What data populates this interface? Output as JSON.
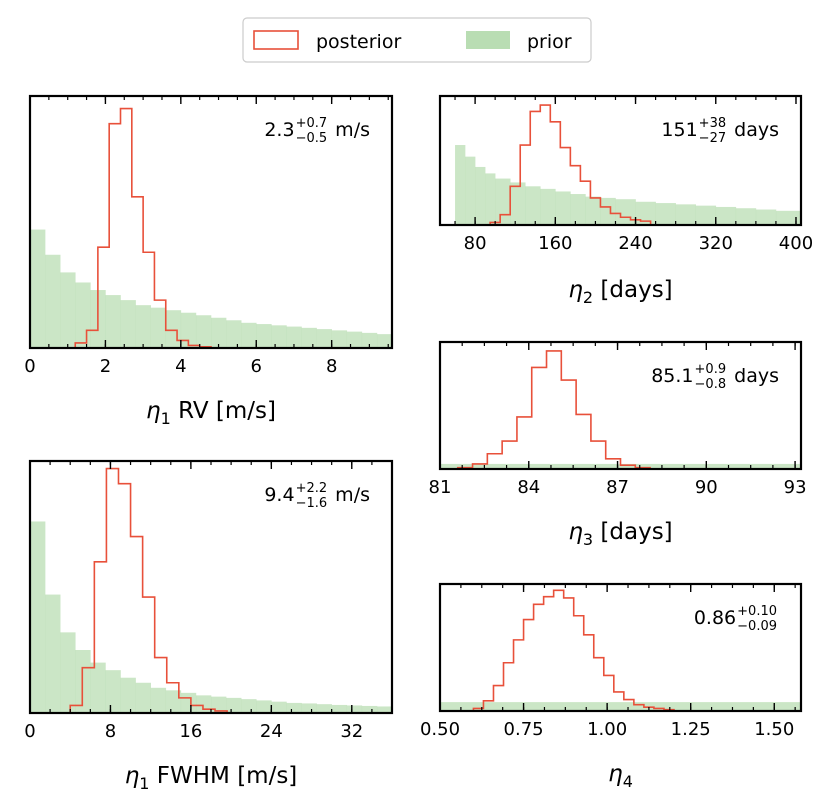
{
  "legend": {
    "posterior_label": "posterior",
    "prior_label": "prior",
    "posterior_color": "#e8503a",
    "prior_color": "#b9ddb3"
  },
  "chart_data": [
    {
      "id": "eta1-rv",
      "type": "histogram",
      "xlabel_symbol": "η",
      "xlabel_sub": "1",
      "xlabel_rest": " RV [m/s]",
      "annotation": {
        "value": "2.3",
        "sup": "+0.7",
        "sub": "−0.5",
        "unit": " m/s"
      },
      "xlim": [
        0,
        9.6
      ],
      "ymax": 1.0,
      "xticks": [
        0,
        2,
        4,
        6,
        8
      ],
      "xticklabels": [
        "0",
        "2",
        "4",
        "6",
        "8"
      ],
      "posterior_edges": [
        1.2,
        1.5,
        1.8,
        2.1,
        2.4,
        2.7,
        3.0,
        3.3,
        3.6,
        3.9,
        4.2,
        4.5,
        4.8
      ],
      "posterior": [
        0.02,
        0.07,
        0.4,
        0.89,
        0.95,
        0.6,
        0.38,
        0.19,
        0.07,
        0.03,
        0.01,
        0.005
      ],
      "prior_edges": [
        0,
        0.4,
        0.8,
        1.2,
        1.6,
        2.0,
        2.4,
        2.8,
        3.2,
        3.6,
        4.0,
        4.4,
        4.8,
        5.2,
        5.6,
        6.0,
        6.4,
        6.8,
        7.2,
        7.6,
        8.0,
        8.4,
        8.8,
        9.2,
        9.6
      ],
      "prior": [
        0.47,
        0.37,
        0.3,
        0.26,
        0.23,
        0.21,
        0.19,
        0.17,
        0.16,
        0.15,
        0.14,
        0.13,
        0.12,
        0.11,
        0.1,
        0.095,
        0.09,
        0.085,
        0.08,
        0.075,
        0.07,
        0.065,
        0.06,
        0.055
      ]
    },
    {
      "id": "eta1-fwhm",
      "type": "histogram",
      "xlabel_symbol": "η",
      "xlabel_sub": "1",
      "xlabel_rest": " FWHM [m/s]",
      "annotation": {
        "value": "9.4",
        "sup": "+2.2",
        "sub": "−1.6",
        "unit": " m/s"
      },
      "xlim": [
        0,
        36
      ],
      "ymax": 1.0,
      "xticks": [
        0,
        8,
        16,
        24,
        32
      ],
      "xticklabels": [
        "0",
        "8",
        "16",
        "24",
        "32"
      ],
      "posterior_edges": [
        4,
        5.2,
        6.4,
        7.6,
        8.8,
        10,
        11.2,
        12.4,
        13.6,
        14.8,
        16,
        17.2,
        18.4,
        19.6
      ],
      "posterior": [
        0.03,
        0.18,
        0.6,
        0.97,
        0.91,
        0.7,
        0.46,
        0.22,
        0.12,
        0.06,
        0.03,
        0.015,
        0.008
      ],
      "prior_edges": [
        0,
        1.5,
        3,
        4.5,
        6,
        7.5,
        9,
        10.5,
        12,
        13.5,
        15,
        16.5,
        18,
        19.5,
        21,
        22.5,
        24,
        25.5,
        27,
        28.5,
        30,
        31.5,
        33,
        34.5,
        36
      ],
      "prior": [
        0.76,
        0.47,
        0.32,
        0.25,
        0.2,
        0.17,
        0.14,
        0.12,
        0.1,
        0.09,
        0.08,
        0.07,
        0.065,
        0.06,
        0.055,
        0.05,
        0.045,
        0.04,
        0.038,
        0.035,
        0.032,
        0.03,
        0.028,
        0.026
      ]
    },
    {
      "id": "eta2",
      "type": "histogram",
      "xlabel_symbol": "η",
      "xlabel_sub": "2",
      "xlabel_rest": " [days]",
      "annotation": {
        "value": "151",
        "sup": "+38",
        "sub": "−27",
        "unit": "  days"
      },
      "xlim": [
        45,
        405
      ],
      "ymax": 1.0,
      "xticks": [
        80,
        160,
        240,
        320,
        400
      ],
      "xticklabels": [
        "80",
        "160",
        "240",
        "320",
        "400"
      ],
      "posterior_edges": [
        95,
        105,
        115,
        125,
        135,
        145,
        155,
        165,
        175,
        185,
        195,
        205,
        215,
        225,
        235,
        245,
        255
      ],
      "posterior": [
        0.02,
        0.08,
        0.3,
        0.62,
        0.88,
        0.93,
        0.8,
        0.6,
        0.46,
        0.34,
        0.21,
        0.14,
        0.09,
        0.06,
        0.04,
        0.03
      ],
      "prior_edges": [
        60,
        70,
        80,
        90,
        100,
        115,
        130,
        145,
        160,
        175,
        190,
        205,
        220,
        240,
        260,
        280,
        300,
        320,
        340,
        360,
        380,
        405
      ],
      "prior": [
        0.62,
        0.53,
        0.45,
        0.4,
        0.36,
        0.33,
        0.3,
        0.28,
        0.26,
        0.24,
        0.22,
        0.21,
        0.2,
        0.18,
        0.17,
        0.16,
        0.15,
        0.14,
        0.13,
        0.12,
        0.11
      ]
    },
    {
      "id": "eta3",
      "type": "histogram",
      "xlabel_symbol": "η",
      "xlabel_sub": "3",
      "xlabel_rest": " [days]",
      "annotation": {
        "value": "85.1",
        "sup": "+0.9",
        "sub": "−0.8",
        "unit": "  days"
      },
      "xlim": [
        81,
        93.2
      ],
      "ymax": 1.0,
      "xticks": [
        81,
        84,
        87,
        90,
        93
      ],
      "xticklabels": [
        "81",
        "84",
        "87",
        "90",
        "93"
      ],
      "posterior_edges": [
        81.6,
        82.1,
        82.6,
        83.1,
        83.6,
        84.1,
        84.6,
        85.1,
        85.6,
        86.1,
        86.6,
        87.1,
        87.6,
        88.1
      ],
      "posterior": [
        0.01,
        0.04,
        0.12,
        0.22,
        0.41,
        0.8,
        0.93,
        0.7,
        0.43,
        0.22,
        0.08,
        0.03,
        0.01
      ],
      "prior_edges": [
        81,
        93.2
      ],
      "prior": [
        0.04
      ]
    },
    {
      "id": "eta4",
      "type": "histogram",
      "xlabel_symbol": "η",
      "xlabel_sub": "4",
      "xlabel_rest": "",
      "annotation": {
        "value": "0.86",
        "sup": "+0.10",
        "sub": "−0.09",
        "unit": ""
      },
      "xlim": [
        0.5,
        1.58
      ],
      "ymax": 1.0,
      "xticks": [
        0.5,
        0.75,
        1.0,
        1.25,
        1.5
      ],
      "xticklabels": [
        "0.50",
        "0.75",
        "1.00",
        "1.25",
        "1.50"
      ],
      "posterior_edges": [
        0.6,
        0.63,
        0.66,
        0.69,
        0.72,
        0.75,
        0.78,
        0.81,
        0.84,
        0.87,
        0.9,
        0.93,
        0.96,
        0.99,
        1.02,
        1.05,
        1.08,
        1.11,
        1.14,
        1.17,
        1.2
      ],
      "posterior": [
        0.02,
        0.08,
        0.2,
        0.38,
        0.56,
        0.72,
        0.84,
        0.9,
        0.95,
        0.89,
        0.75,
        0.6,
        0.42,
        0.28,
        0.15,
        0.09,
        0.05,
        0.03,
        0.02,
        0.01
      ],
      "prior_edges": [
        0.5,
        1.58
      ],
      "prior": [
        0.07
      ]
    }
  ]
}
